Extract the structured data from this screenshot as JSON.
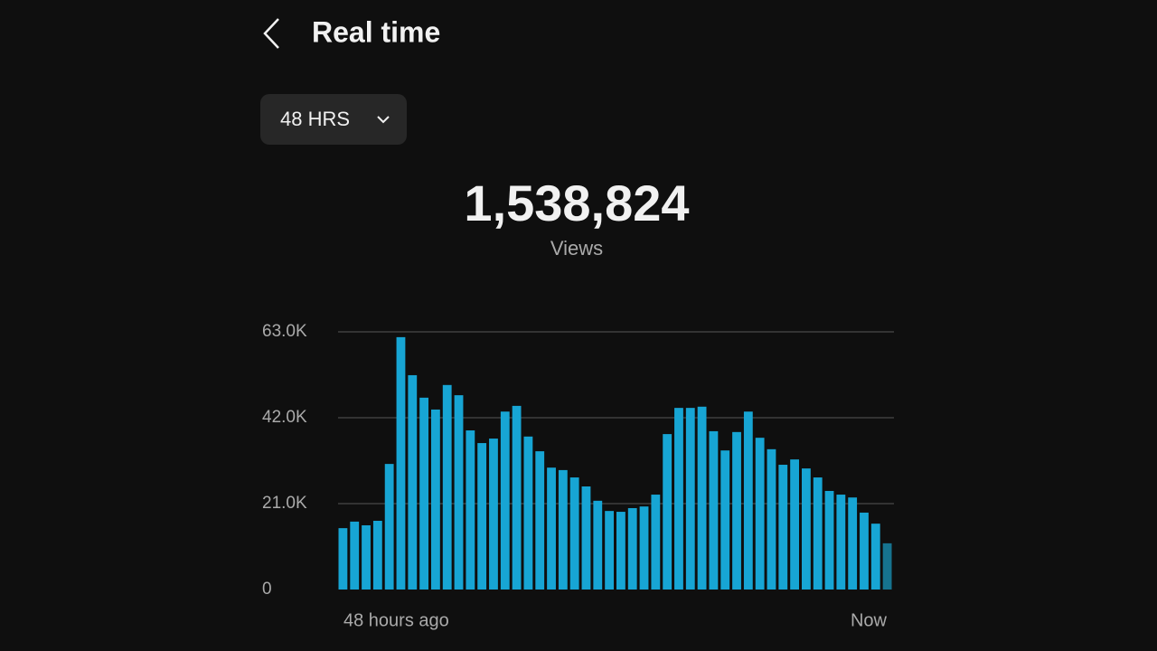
{
  "header": {
    "title": "Real time"
  },
  "range_selector": {
    "label": "48 HRS"
  },
  "summary": {
    "total": "1,538,824",
    "label": "Views"
  },
  "chart_data": {
    "type": "bar",
    "categories": [
      "48 hours ago",
      null,
      null,
      null,
      null,
      null,
      null,
      null,
      null,
      null,
      null,
      null,
      null,
      null,
      null,
      null,
      null,
      null,
      null,
      null,
      null,
      null,
      null,
      null,
      null,
      null,
      null,
      null,
      null,
      null,
      null,
      null,
      null,
      null,
      null,
      null,
      null,
      null,
      null,
      null,
      null,
      null,
      null,
      null,
      null,
      null,
      null,
      "Now"
    ],
    "values": [
      15000,
      16600,
      15700,
      16800,
      30700,
      61700,
      52400,
      46900,
      44000,
      50000,
      47500,
      38900,
      35800,
      36900,
      43500,
      44900,
      37400,
      33800,
      29800,
      29200,
      27400,
      25200,
      21700,
      19200,
      19000,
      19900,
      20300,
      23200,
      38000,
      44400,
      44400,
      44700,
      38700,
      34000,
      38500,
      43500,
      37100,
      34300,
      30500,
      31800,
      29600,
      27400,
      24100,
      23200,
      22500,
      18800,
      16100,
      11300
    ],
    "color": "#17a5d4",
    "current_color": "#16738f",
    "ylim": [
      0,
      63000
    ],
    "yticks": [
      0,
      {
        "value": 21000,
        "label": "21.0K"
      },
      {
        "value": 42000,
        "label": "42.0K"
      },
      {
        "value": 63000,
        "label": "63.0K"
      }
    ],
    "grid": true
  }
}
